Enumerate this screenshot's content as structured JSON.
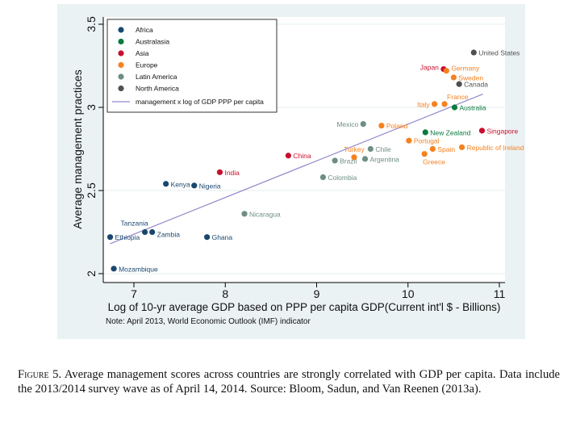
{
  "chart_data": {
    "type": "scatter",
    "xlabel": "Log of 10-yr average GDP based on PPP per capita GDP(Current int'l $ - Billions)",
    "ylabel": "Average management practices",
    "note": "Note: April 2013, World Economic Outlook (IMF) indicator",
    "xlim": [
      6.7,
      11.05
    ],
    "ylim": [
      1.95,
      3.55
    ],
    "xticks": [
      "7",
      "8",
      "9",
      "10",
      "11"
    ],
    "yticks": [
      "2",
      "2.5",
      "3",
      "3.5"
    ],
    "grid": "horizontal",
    "legend_position": "top-left",
    "legend": [
      {
        "name": "Africa",
        "color": "#1a476f"
      },
      {
        "name": "Australasia",
        "color": "#0a7a3e"
      },
      {
        "name": "Asia",
        "color": "#c8102e"
      },
      {
        "name": "Europe",
        "color": "#f58220"
      },
      {
        "name": "Latin America",
        "color": "#6e8e84"
      },
      {
        "name": "North America",
        "color": "#505050"
      }
    ],
    "fit_line": {
      "name": "management x log of GDP PPP per capita",
      "color": "#9387c9",
      "x": [
        6.74,
        10.82
      ],
      "y": [
        2.18,
        3.08
      ]
    },
    "points": [
      {
        "label": "Ethiopia",
        "region": "Africa",
        "x": 6.74,
        "y": 2.22
      },
      {
        "label": "Tanzania",
        "region": "Africa",
        "x": 7.12,
        "y": 2.25
      },
      {
        "label": "Zambia",
        "region": "Africa",
        "x": 7.2,
        "y": 2.25
      },
      {
        "label": "Mozambique",
        "region": "Africa",
        "x": 6.78,
        "y": 2.03
      },
      {
        "label": "Kenya",
        "region": "Africa",
        "x": 7.35,
        "y": 2.54
      },
      {
        "label": "Nigeria",
        "region": "Africa",
        "x": 7.66,
        "y": 2.53
      },
      {
        "label": "Ghana",
        "region": "Africa",
        "x": 7.8,
        "y": 2.22
      },
      {
        "label": "India",
        "region": "Asia",
        "x": 7.94,
        "y": 2.61
      },
      {
        "label": "Nicaragua",
        "region": "Latin America",
        "x": 8.21,
        "y": 2.36
      },
      {
        "label": "China",
        "region": "Asia",
        "x": 8.69,
        "y": 2.71
      },
      {
        "label": "Colombia",
        "region": "Latin America",
        "x": 9.07,
        "y": 2.58
      },
      {
        "label": "Brazil",
        "region": "Latin America",
        "x": 9.2,
        "y": 2.68
      },
      {
        "label": "Turkey",
        "region": "Europe",
        "x": 9.41,
        "y": 2.7
      },
      {
        "label": "Argentina",
        "region": "Latin America",
        "x": 9.53,
        "y": 2.69
      },
      {
        "label": "Chile",
        "region": "Latin America",
        "x": 9.59,
        "y": 2.75
      },
      {
        "label": "Mexico",
        "region": "Latin America",
        "x": 9.51,
        "y": 2.9
      },
      {
        "label": "Poland",
        "region": "Europe",
        "x": 9.71,
        "y": 2.89
      },
      {
        "label": "Portugal",
        "region": "Europe",
        "x": 10.01,
        "y": 2.8
      },
      {
        "label": "New Zealand",
        "region": "Australasia",
        "x": 10.19,
        "y": 2.85
      },
      {
        "label": "Greece",
        "region": "Europe",
        "x": 10.18,
        "y": 2.72
      },
      {
        "label": "Spain",
        "region": "Europe",
        "x": 10.27,
        "y": 2.75
      },
      {
        "label": "Republic of Ireland",
        "region": "Europe",
        "x": 10.59,
        "y": 2.76
      },
      {
        "label": "Singapore",
        "region": "Asia",
        "x": 10.81,
        "y": 2.86
      },
      {
        "label": "Italy",
        "region": "Europe",
        "x": 10.29,
        "y": 3.02
      },
      {
        "label": "France",
        "region": "Europe",
        "x": 10.4,
        "y": 3.02
      },
      {
        "label": "Australia",
        "region": "Australasia",
        "x": 10.51,
        "y": 3.0
      },
      {
        "label": "Japan",
        "region": "Asia",
        "x": 10.39,
        "y": 3.23
      },
      {
        "label": "Germany",
        "region": "Europe",
        "x": 10.42,
        "y": 3.22
      },
      {
        "label": "Sweden",
        "region": "Europe",
        "x": 10.5,
        "y": 3.18
      },
      {
        "label": "Canada",
        "region": "North America",
        "x": 10.56,
        "y": 3.14
      },
      {
        "label": "United States",
        "region": "North America",
        "x": 10.72,
        "y": 3.33
      }
    ]
  },
  "caption": {
    "figure_label": "Figure 5.",
    "text": "Average management scores across countries are strongly correlated with GDP per capita. Data include the 2013/2014 survey wave as of April 14, 2014. Source: Bloom, Sadun, and Van Reenen (2013a)."
  }
}
